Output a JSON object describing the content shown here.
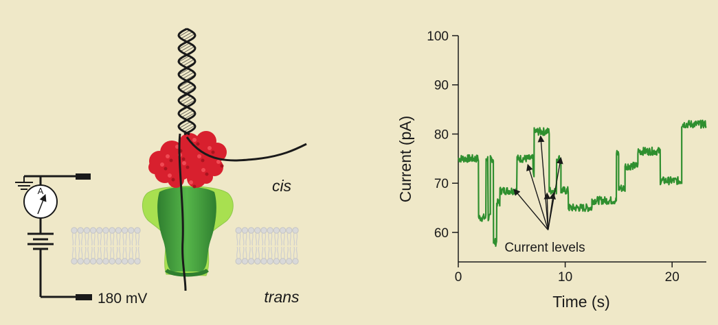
{
  "labels": {
    "cis": "cis",
    "trans": "trans",
    "voltage": "180  mV",
    "ammeter": "A"
  },
  "colors": {
    "background": "#efe8c8",
    "trace": "#2f8f2f",
    "pore_dark": "#3d9a3d",
    "pore_light": "#9fdc4a",
    "motor": "#d8202e",
    "membrane": "#d4d4d4",
    "dna": "#1a1a1a"
  },
  "chart_data": {
    "type": "line",
    "xlabel": "Time (s)",
    "ylabel": "Current (pA)",
    "xlim": [
      0,
      23.2
    ],
    "ylim": [
      54,
      100
    ],
    "xticks": [
      0,
      10,
      20
    ],
    "yticks": [
      60,
      70,
      80,
      90,
      100
    ],
    "annotation": "Current levels",
    "series": [
      {
        "steps": [
          [
            0,
            1.9,
            75
          ],
          [
            1.9,
            2.6,
            63
          ],
          [
            2.6,
            2.8,
            75
          ],
          [
            2.8,
            3.0,
            63
          ],
          [
            3.0,
            3.3,
            75
          ],
          [
            3.3,
            3.6,
            58
          ],
          [
            3.6,
            3.9,
            66
          ],
          [
            3.9,
            5.5,
            68.5
          ],
          [
            5.5,
            7.0,
            75
          ],
          [
            7.0,
            7.1,
            72
          ],
          [
            7.1,
            8.5,
            80.5
          ],
          [
            8.5,
            9.2,
            68.5
          ],
          [
            9.2,
            9.6,
            75
          ],
          [
            9.6,
            10.3,
            68.5
          ],
          [
            10.3,
            12.5,
            65
          ],
          [
            12.5,
            14.8,
            66.5
          ],
          [
            14.8,
            15.0,
            76
          ],
          [
            15.0,
            15.6,
            69
          ],
          [
            15.6,
            16.8,
            73.5
          ],
          [
            16.8,
            18.9,
            76.5
          ],
          [
            18.9,
            20.9,
            70.5
          ],
          [
            20.9,
            23.2,
            82
          ]
        ]
      }
    ]
  }
}
